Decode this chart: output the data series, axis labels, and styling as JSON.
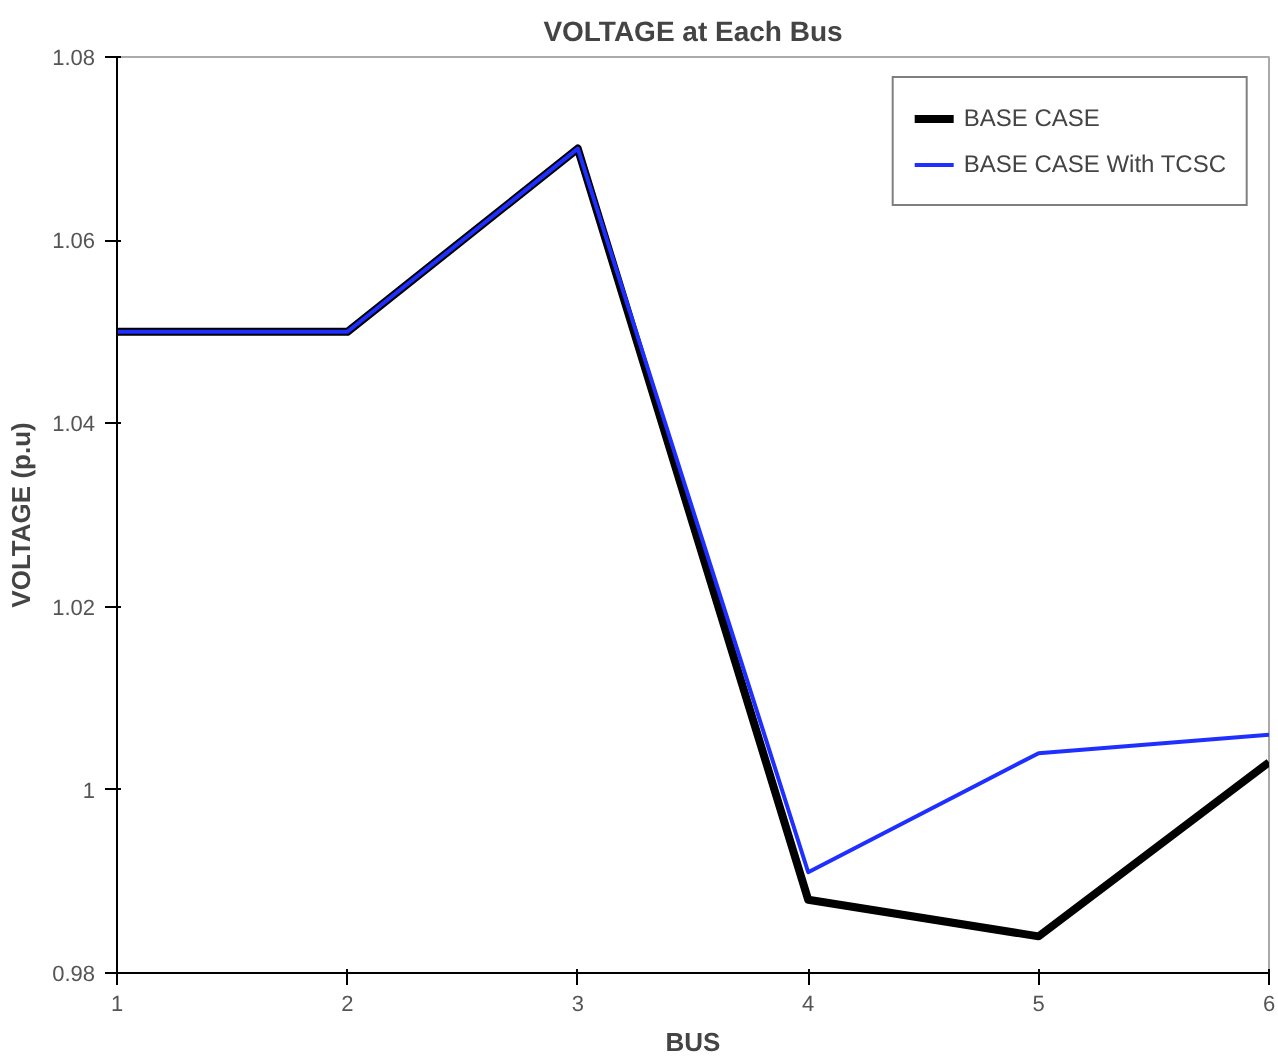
{
  "chart_data": {
    "type": "line",
    "title": "VOLTAGE at Each Bus",
    "xlabel": "BUS",
    "ylabel": "VOLTAGE (p.u)",
    "x": [
      1,
      2,
      3,
      4,
      5,
      6
    ],
    "series": [
      {
        "name": "BASE CASE",
        "color": "#000000",
        "values": [
          1.05,
          1.05,
          1.07,
          0.988,
          0.984,
          1.003
        ]
      },
      {
        "name": "BASE CASE With TCSC",
        "color": "#1f2fff",
        "values": [
          1.05,
          1.05,
          1.07,
          0.991,
          1.004,
          1.006
        ]
      }
    ],
    "xlim": [
      1,
      6
    ],
    "xticks": [
      1,
      2,
      3,
      4,
      5,
      6
    ],
    "ylim": [
      0.98,
      1.08
    ],
    "yticks": [
      0.98,
      1,
      1.02,
      1.04,
      1.06,
      1.08
    ],
    "grid": false,
    "legend": "top right",
    "marker": "none",
    "line_style": "solid"
  }
}
